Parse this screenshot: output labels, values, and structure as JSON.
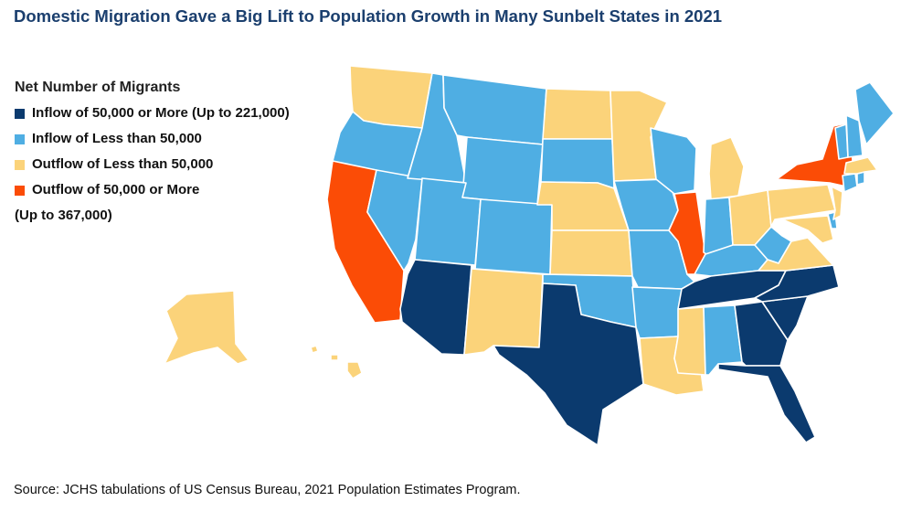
{
  "title": "Domestic Migration Gave a Big Lift to Population Growth in Many Sunbelt States in 2021",
  "legend": {
    "title": "Net Number of Migrants",
    "items": [
      {
        "key": "in_large",
        "label": "Inflow of 50,000 or More (Up to 221,000)",
        "color": "#0b3a6e"
      },
      {
        "key": "in_small",
        "label": "Inflow of Less than 50,000",
        "color": "#4faee3"
      },
      {
        "key": "out_small",
        "label": "Outflow of Less than 50,000",
        "color": "#fbd37a"
      },
      {
        "key": "out_large",
        "label": "Outflow of 50,000 or More",
        "label_line2": "(Up to 367,000)",
        "color": "#fb4c06"
      }
    ]
  },
  "states": {
    "AZ": "in_large",
    "TX": "in_large",
    "FL": "in_large",
    "GA": "in_large",
    "SC": "in_large",
    "NC": "in_large",
    "TN": "in_large",
    "WA": "out_small",
    "ND": "out_small",
    "MN": "out_small",
    "NE": "out_small",
    "KS": "out_small",
    "NM": "out_small",
    "LA": "out_small",
    "MS": "out_small",
    "MI": "out_small",
    "OH": "out_small",
    "PA": "out_small",
    "VA": "out_small",
    "MD": "out_small",
    "NJ": "out_small",
    "MA": "out_small",
    "AK": "out_small",
    "HI": "out_small",
    "CA": "out_large",
    "IL": "out_large",
    "NY": "out_large",
    "OR": "in_small",
    "ID": "in_small",
    "MT": "in_small",
    "WY": "in_small",
    "NV": "in_small",
    "UT": "in_small",
    "CO": "in_small",
    "SD": "in_small",
    "IA": "in_small",
    "MO": "in_small",
    "OK": "in_small",
    "AR": "in_small",
    "AL": "in_small",
    "WI": "in_small",
    "IN": "in_small",
    "KY": "in_small",
    "WV": "in_small",
    "ME": "in_small",
    "NH": "in_small",
    "VT": "in_small",
    "CT": "in_small",
    "RI": "in_small",
    "DE": "in_small"
  },
  "source": "Source: JCHS tabulations of US Census Bureau, 2021 Population Estimates Program."
}
